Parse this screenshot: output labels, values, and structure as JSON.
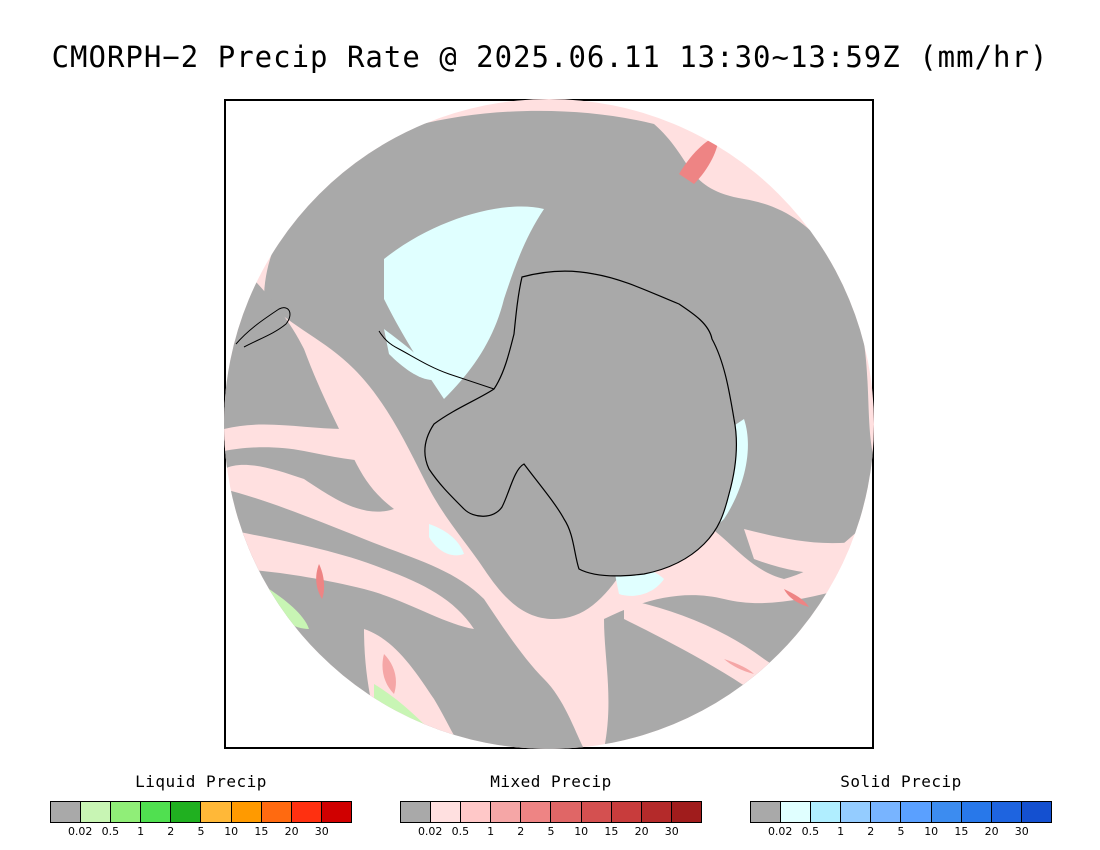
{
  "title": "CMORPH−2 Precip Rate @ 2025.06.11 13:30~13:59Z (mm/hr)",
  "legends": [
    {
      "label": "Liquid Precip",
      "colors": [
        "#a9a9a9",
        "#c8f5b4",
        "#90ee78",
        "#50e050",
        "#20b020",
        "#ffb838",
        "#ff9a00",
        "#ff6a10",
        "#ff3010",
        "#d00000"
      ],
      "ticks": [
        "0.02",
        "0.5",
        "1",
        "2",
        "5",
        "10",
        "15",
        "20",
        "30"
      ]
    },
    {
      "label": "Mixed Precip",
      "colors": [
        "#a9a9a9",
        "#ffe0e0",
        "#ffc8c8",
        "#f5a6a6",
        "#ee8484",
        "#e06666",
        "#d45050",
        "#c83c3c",
        "#b42a2a",
        "#a01c1c"
      ],
      "ticks": [
        "0.02",
        "0.5",
        "1",
        "2",
        "5",
        "10",
        "15",
        "20",
        "30"
      ]
    },
    {
      "label": "Solid Precip",
      "colors": [
        "#a9a9a9",
        "#e0ffff",
        "#b0eeff",
        "#94ccff",
        "#78b4ff",
        "#5aa0ff",
        "#3c8cf0",
        "#2878ea",
        "#1e64e0",
        "#1450d0"
      ],
      "ticks": [
        "0.02",
        "0.5",
        "1",
        "2",
        "5",
        "10",
        "15",
        "20",
        "30"
      ]
    }
  ]
}
